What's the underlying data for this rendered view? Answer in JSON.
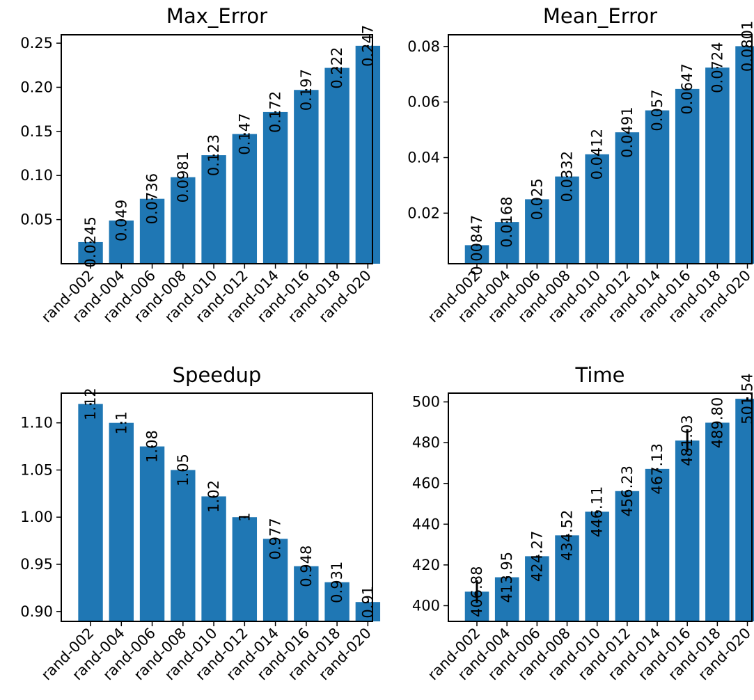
{
  "chart_data": [
    {
      "type": "bar",
      "title": "Max_Error",
      "categories": [
        "rand-002",
        "rand-004",
        "rand-006",
        "rand-008",
        "rand-010",
        "rand-012",
        "rand-014",
        "rand-016",
        "rand-018",
        "rand-020"
      ],
      "values": [
        0.0245,
        0.049,
        0.0736,
        0.0981,
        0.123,
        0.147,
        0.172,
        0.197,
        0.222,
        0.247
      ],
      "errors": [
        0,
        0,
        0,
        0,
        0,
        0.001,
        0,
        0.001,
        0.001,
        0
      ],
      "labels": [
        "0.0245",
        "0.049",
        "0.0736",
        "0.0981",
        "0.123",
        "0.147",
        "0.172",
        "0.197",
        "0.222",
        "0.247"
      ],
      "yticks": [
        "0.05",
        "0.10",
        "0.15",
        "0.20",
        "0.25"
      ],
      "ytick_values": [
        0.05,
        0.1,
        0.15,
        0.2,
        0.25
      ],
      "ylim": [
        0.0,
        0.2595
      ],
      "xlabel": "",
      "ylabel": "",
      "grid": false,
      "color": "#1f77b4"
    },
    {
      "type": "bar",
      "title": "Mean_Error",
      "categories": [
        "rand-002",
        "rand-004",
        "rand-006",
        "rand-008",
        "rand-010",
        "rand-012",
        "rand-014",
        "rand-016",
        "rand-018",
        "rand-020"
      ],
      "values": [
        0.00847,
        0.0168,
        0.025,
        0.0332,
        0.0412,
        0.0491,
        0.057,
        0.0647,
        0.0724,
        0.0801
      ],
      "errors": [
        0.0002,
        0.0002,
        0.0002,
        0.0002,
        0.0002,
        0.0002,
        0.0002,
        0.0002,
        0.0002,
        0.0003
      ],
      "labels": [
        "0.00847",
        "0.0168",
        "0.025",
        "0.0332",
        "0.0412",
        "0.0491",
        "0.057",
        "0.0647",
        "0.0724",
        "0.0801"
      ],
      "yticks": [
        "0.02",
        "0.04",
        "0.06",
        "0.08"
      ],
      "ytick_values": [
        0.02,
        0.04,
        0.06,
        0.08
      ],
      "ylim": [
        0.0018,
        0.0842
      ],
      "xlabel": "",
      "ylabel": "",
      "grid": false,
      "color": "#1f77b4"
    },
    {
      "type": "bar",
      "title": "Speedup",
      "categories": [
        "rand-002",
        "rand-004",
        "rand-006",
        "rand-008",
        "rand-010",
        "rand-012",
        "rand-014",
        "rand-016",
        "rand-018",
        "rand-020"
      ],
      "values": [
        1.12,
        1.1,
        1.075,
        1.05,
        1.022,
        1.0,
        0.977,
        0.948,
        0.931,
        0.91
      ],
      "errors": [
        0.001,
        0.001,
        0.001,
        0.001,
        0.001,
        0.001,
        0.001,
        0.001,
        0.001,
        0.001
      ],
      "labels": [
        "1.12",
        "1.1",
        "1.08",
        "1.05",
        "1.02",
        "1",
        "0.977",
        "0.948",
        "0.931",
        "0.91"
      ],
      "yticks": [
        "0.90",
        "0.95",
        "1.00",
        "1.05",
        "1.10"
      ],
      "ytick_values": [
        0.9,
        0.95,
        1.0,
        1.05,
        1.1
      ],
      "ylim": [
        0.8895,
        1.1315
      ],
      "xlabel": "",
      "ylabel": "",
      "grid": false,
      "color": "#1f77b4"
    },
    {
      "type": "bar",
      "title": "Time",
      "categories": [
        "rand-002",
        "rand-004",
        "rand-006",
        "rand-008",
        "rand-010",
        "rand-012",
        "rand-014",
        "rand-016",
        "rand-018",
        "rand-020"
      ],
      "values": [
        406.88,
        413.95,
        424.27,
        434.52,
        446.11,
        456.23,
        467.13,
        481.03,
        489.8,
        501.54
      ],
      "errors": [
        5.6,
        0.5,
        0.3,
        0.2,
        0.7,
        0.2,
        0.2,
        5.6,
        0.4,
        0.7
      ],
      "labels": [
        "406.88",
        "413.95",
        "424.27",
        "434.52",
        "446.11",
        "456.23",
        "467.13",
        "481.03",
        "489.80",
        "501.54"
      ],
      "yticks": [
        "400",
        "420",
        "440",
        "460",
        "480",
        "500"
      ],
      "ytick_values": [
        400,
        420,
        440,
        460,
        480,
        500
      ],
      "ylim": [
        392.3,
        504.3
      ],
      "xlabel": "",
      "ylabel": "",
      "grid": false,
      "color": "#1f77b4"
    }
  ]
}
